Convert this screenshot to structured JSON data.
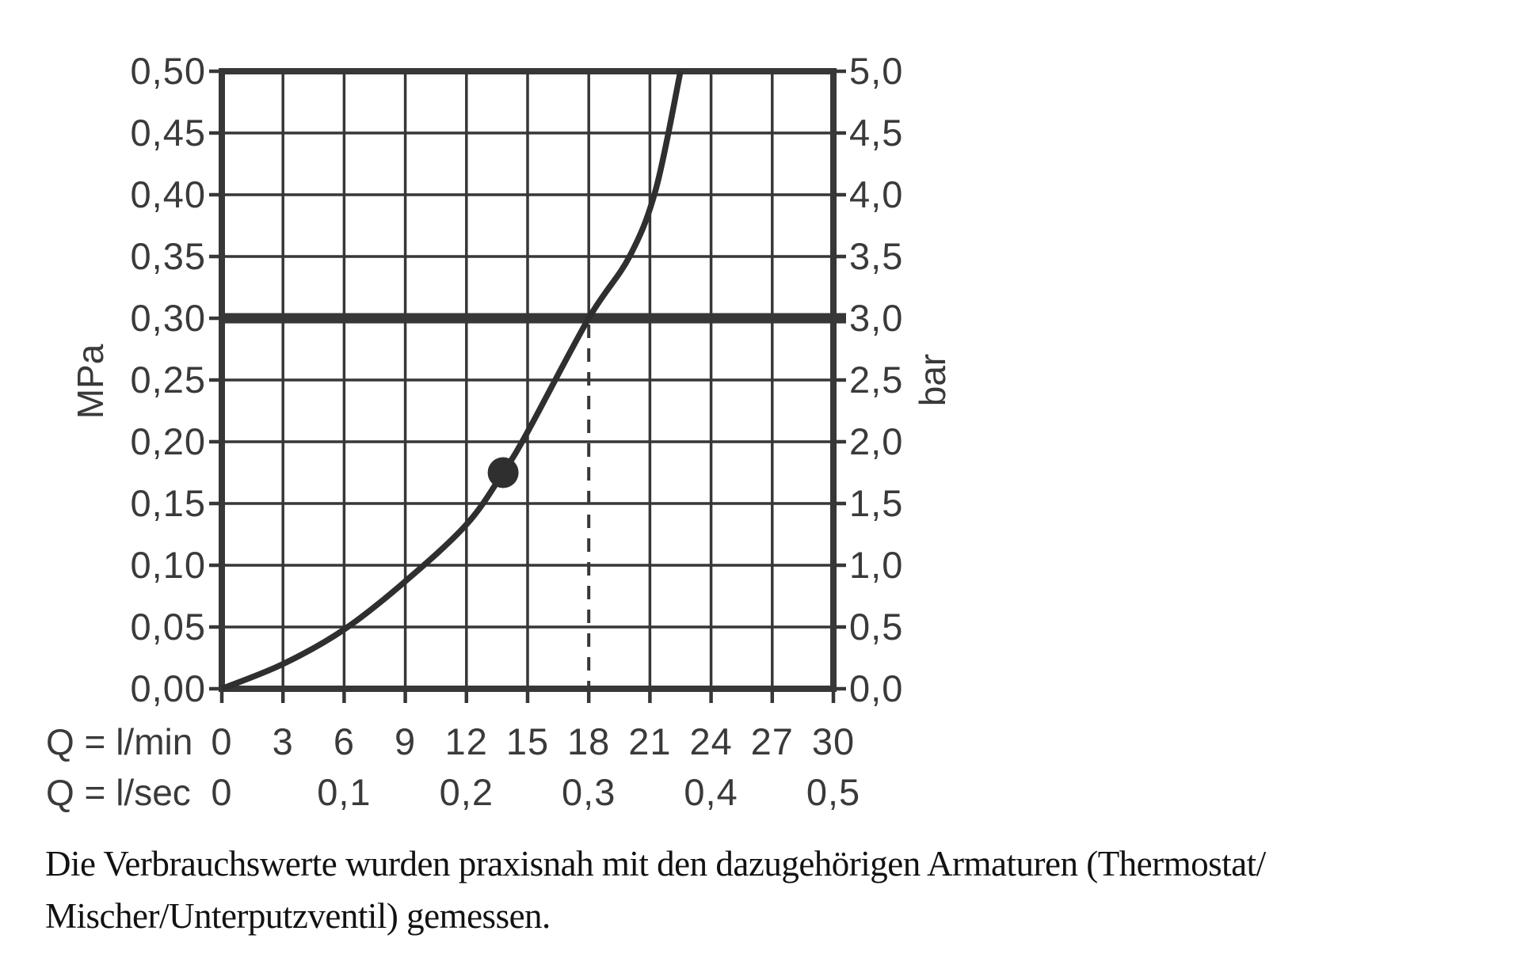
{
  "caption": {
    "line1": "Die Verbrauchswerte wurden praxisnah mit den dazugehörigen Armaturen (Thermostat/",
    "line2": "Mischer/Unterputzventil) gemessen."
  },
  "chart_data": {
    "type": "line",
    "x_axis": {
      "row1_label": "Q = l/min",
      "row1_ticks": [
        {
          "q": 0,
          "label": "0"
        },
        {
          "q": 3,
          "label": "3"
        },
        {
          "q": 6,
          "label": "6"
        },
        {
          "q": 9,
          "label": "9"
        },
        {
          "q": 12,
          "label": "12"
        },
        {
          "q": 15,
          "label": "15"
        },
        {
          "q": 18,
          "label": "18"
        },
        {
          "q": 21,
          "label": "21"
        },
        {
          "q": 24,
          "label": "24"
        },
        {
          "q": 27,
          "label": "27"
        },
        {
          "q": 30,
          "label": "30"
        }
      ],
      "row2_label": "Q = l/sec",
      "row2_ticks": [
        {
          "q": 0,
          "label": "0"
        },
        {
          "q": 6,
          "label": "0,1"
        },
        {
          "q": 12,
          "label": "0,2"
        },
        {
          "q": 18,
          "label": "0,3"
        },
        {
          "q": 24,
          "label": "0,4"
        },
        {
          "q": 30,
          "label": "0,5"
        }
      ],
      "range": [
        0,
        30
      ],
      "grid_step": 3
    },
    "y_axis_left": {
      "unit": "MPa",
      "range": [
        0,
        0.5
      ],
      "grid_step": 0.05,
      "ticks": [
        {
          "v": 0.5,
          "label": "0,50"
        },
        {
          "v": 0.45,
          "label": "0,45"
        },
        {
          "v": 0.4,
          "label": "0,40"
        },
        {
          "v": 0.35,
          "label": "0,35"
        },
        {
          "v": 0.3,
          "label": "0,30"
        },
        {
          "v": 0.25,
          "label": "0,25"
        },
        {
          "v": 0.2,
          "label": "0,20"
        },
        {
          "v": 0.15,
          "label": "0,15"
        },
        {
          "v": 0.1,
          "label": "0,10"
        },
        {
          "v": 0.05,
          "label": "0,05"
        },
        {
          "v": 0.0,
          "label": "0,00"
        }
      ]
    },
    "y_axis_right": {
      "unit": "bar",
      "range": [
        0,
        5
      ],
      "ticks": [
        {
          "v": 0.5,
          "label": "5,0"
        },
        {
          "v": 0.45,
          "label": "4,5"
        },
        {
          "v": 0.4,
          "label": "4,0"
        },
        {
          "v": 0.35,
          "label": "3,5"
        },
        {
          "v": 0.3,
          "label": "3,0"
        },
        {
          "v": 0.25,
          "label": "2,5"
        },
        {
          "v": 0.2,
          "label": "2,0"
        },
        {
          "v": 0.15,
          "label": "1,5"
        },
        {
          "v": 0.1,
          "label": "1,0"
        },
        {
          "v": 0.05,
          "label": "0,5"
        },
        {
          "v": 0.0,
          "label": "0,0"
        }
      ]
    },
    "series": [
      {
        "name": "flow-pressure-curve",
        "points_q_mpa": [
          [
            0,
            0
          ],
          [
            3,
            0.02
          ],
          [
            6,
            0.048
          ],
          [
            9,
            0.087
          ],
          [
            12,
            0.133
          ],
          [
            13.8,
            0.175
          ],
          [
            15,
            0.208
          ],
          [
            18,
            0.3
          ],
          [
            20,
            0.35
          ],
          [
            21.3,
            0.405
          ],
          [
            22.5,
            0.5
          ]
        ]
      }
    ],
    "marker": {
      "q": 13.8,
      "mpa": 0.175
    },
    "reference_line": {
      "mpa": 0.3,
      "bar": 3.0
    },
    "dashed_drop_line": {
      "q": 18,
      "from_mpa": 0.3,
      "to_mpa": 0
    },
    "grid": true,
    "legend": "none",
    "colors": {
      "stroke": "#373737",
      "curve": "#2f2f2f",
      "label": "#3a3a3a",
      "caption": "#121212",
      "background": "#ffffff"
    }
  }
}
